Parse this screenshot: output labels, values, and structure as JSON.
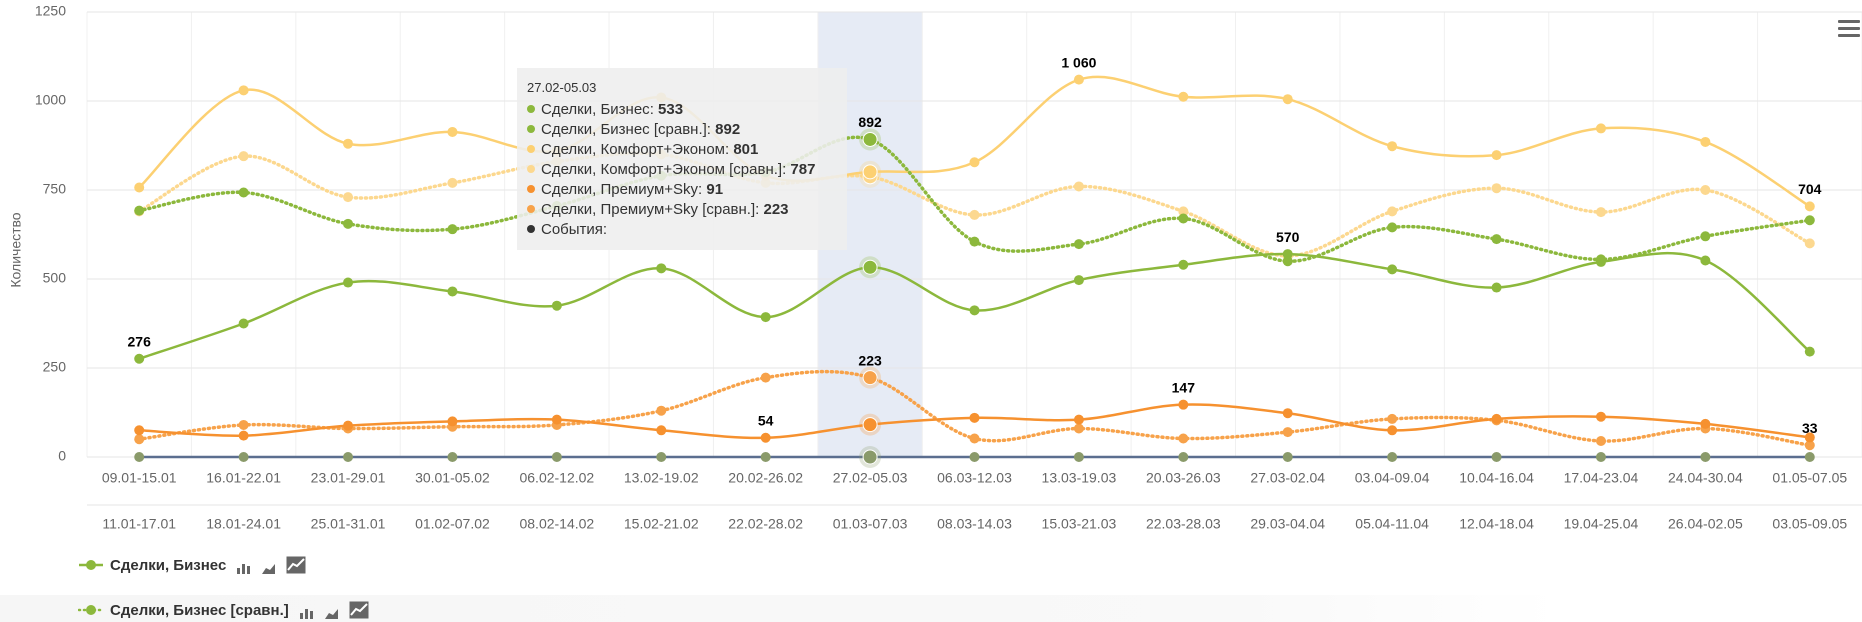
{
  "chart_data": {
    "type": "line",
    "y_label": "Количество",
    "categories": [
      "09.01-15.01",
      "16.01-22.01",
      "23.01-29.01",
      "30.01-05.02",
      "06.02-12.02",
      "13.02-19.02",
      "20.02-26.02",
      "27.02-05.03",
      "06.03-12.03",
      "13.03-19.03",
      "20.03-26.03",
      "27.03-02.04",
      "03.04-09.04",
      "10.04-16.04",
      "17.04-23.04",
      "24.04-30.04",
      "01.05-07.05"
    ],
    "x2_categories": [
      "11.01-17.01",
      "18.01-24.01",
      "25.01-31.01",
      "01.02-07.02",
      "08.02-14.02",
      "15.02-21.02",
      "22.02-28.02",
      "01.03-07.03",
      "08.03-14.03",
      "15.03-21.03",
      "22.03-28.03",
      "29.03-04.04",
      "05.04-11.04",
      "12.04-18.04",
      "19.04-25.04",
      "26.04-02.05",
      "03.05-09.05"
    ],
    "ylim": [
      0,
      1250
    ],
    "yticks": [
      0,
      250,
      500,
      750,
      1000,
      1250
    ],
    "grid": true,
    "series": [
      {
        "name": "Сделки, Бизнес",
        "color": "#8cb83c",
        "dash": "solid",
        "values": [
          276,
          375,
          490,
          465,
          425,
          530,
          393,
          533,
          412,
          497,
          540,
          570,
          527,
          476,
          548,
          552,
          296
        ],
        "value_labels": [
          "276",
          null,
          null,
          null,
          null,
          null,
          null,
          null,
          null,
          null,
          null,
          "570",
          null,
          null,
          null,
          null,
          null
        ]
      },
      {
        "name": "Сделки, Бизнес [сравн.]",
        "color": "#8cb83c",
        "dash": "dot",
        "values": [
          692,
          743,
          655,
          640,
          705,
          790,
          800,
          892,
          605,
          598,
          670,
          550,
          645,
          612,
          555,
          620,
          665
        ],
        "value_labels": [
          null,
          null,
          null,
          null,
          null,
          null,
          null,
          "892",
          null,
          null,
          null,
          null,
          null,
          null,
          null,
          null,
          null
        ]
      },
      {
        "name": "Сделки, Комфорт+Эконом",
        "color": "#fcd072",
        "dash": "solid",
        "values": [
          757,
          1030,
          880,
          913,
          860,
          1010,
          790,
          801,
          828,
          1060,
          1012,
          1005,
          873,
          848,
          923,
          885,
          704
        ],
        "value_labels": [
          null,
          null,
          null,
          null,
          null,
          null,
          null,
          null,
          null,
          "1 060",
          null,
          null,
          null,
          null,
          null,
          null,
          "704"
        ]
      },
      {
        "name": "Сделки, Комфорт+Эконом [сравн.]",
        "color": "#fcd88f",
        "dash": "dot",
        "values": [
          690,
          845,
          730,
          770,
          830,
          850,
          770,
          787,
          680,
          760,
          690,
          565,
          690,
          755,
          688,
          750,
          600
        ],
        "value_labels": null
      },
      {
        "name": "Сделки, Премиум+Sky",
        "color": "#f6912f",
        "dash": "solid",
        "values": [
          75,
          60,
          88,
          100,
          105,
          75,
          54,
          91,
          110,
          105,
          147,
          123,
          75,
          107,
          113,
          93,
          55
        ],
        "value_labels": [
          null,
          null,
          null,
          null,
          null,
          null,
          "54",
          null,
          null,
          null,
          "147",
          null,
          null,
          null,
          null,
          null,
          null
        ]
      },
      {
        "name": "Сделки, Премиум+Sky [сравн.]",
        "color": "#f7a24a",
        "dash": "dot",
        "values": [
          50,
          90,
          80,
          85,
          90,
          130,
          223,
          223,
          52,
          80,
          52,
          70,
          107,
          103,
          45,
          80,
          33
        ],
        "value_labels": [
          null,
          null,
          null,
          null,
          null,
          null,
          null,
          "223",
          null,
          null,
          null,
          null,
          null,
          null,
          null,
          null,
          "33"
        ]
      },
      {
        "name": "События",
        "color": "#8a9a6a",
        "dash": "solid",
        "line_color": "#5b6e8f",
        "tooltip_value": false,
        "values": [
          0,
          0,
          0,
          0,
          0,
          0,
          0,
          0,
          0,
          0,
          0,
          0,
          0,
          0,
          0,
          0,
          0
        ],
        "value_labels": null
      }
    ],
    "tooltip": {
      "title": "27.02-05.03"
    },
    "legend_count": 2
  }
}
